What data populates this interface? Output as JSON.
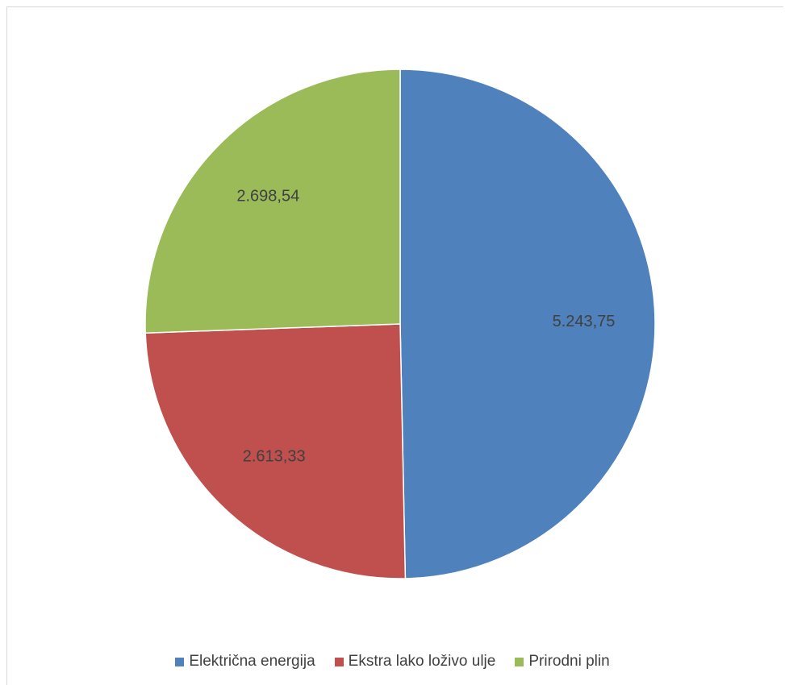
{
  "chart_data": {
    "type": "pie",
    "title": "",
    "categories": [
      "Električna energija",
      "Ekstra lako loživo ulje",
      "Prirodni plin"
    ],
    "values": [
      5243.75,
      2613.33,
      2698.54
    ],
    "labels": [
      "5.243,75",
      "2.613,33",
      "2.698,54"
    ],
    "colors": [
      "#4f81bd",
      "#c0504d",
      "#9bbb59"
    ],
    "start_angle": "12 o'clock",
    "direction": "clockwise",
    "legend": "bottom",
    "data_labels": "inside"
  }
}
